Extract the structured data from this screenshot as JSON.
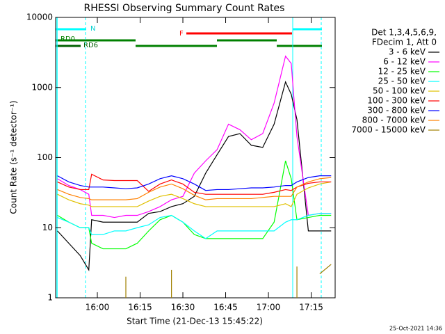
{
  "chart_data": {
    "type": "line",
    "title": "RHESSI Observing Summary Count Rates",
    "xlabel": "Start Time (21-Dec-13 15:45:22)",
    "ylabel": "Count Rate (s⁻¹ detector⁻¹)",
    "legend_header": [
      "Det 1,3,4,5,6,9,",
      "FDecim 1, Att 0"
    ],
    "timestamp": "25-Oct-2021 14:36",
    "flags": [
      "N",
      "F",
      "RD0",
      "RD6"
    ],
    "ylog": true,
    "ylim": [
      1,
      10000
    ],
    "yticks": [
      1,
      10,
      100,
      1000,
      10000
    ],
    "xlim": [
      945.37,
      1043.4
    ],
    "xticks": [
      {
        "value": 960,
        "label": "16:00"
      },
      {
        "value": 975,
        "label": "16:15"
      },
      {
        "value": 990,
        "label": "16:30"
      },
      {
        "value": 1005,
        "label": "16:45"
      },
      {
        "value": 1020,
        "label": "17:00"
      },
      {
        "value": 1035,
        "label": "17:15"
      }
    ],
    "x": [
      946,
      950,
      954,
      957,
      958,
      962,
      966,
      970,
      974,
      978,
      982,
      986,
      990,
      994,
      998,
      1002,
      1006,
      1010,
      1014,
      1018,
      1022,
      1026,
      1028,
      1030,
      1034,
      1038,
      1042
    ],
    "series": [
      {
        "name": "3 - 6 keV",
        "color": "#000000",
        "values": [
          9,
          6,
          4,
          2.5,
          13,
          12,
          12,
          12,
          12,
          16,
          17,
          20,
          22,
          28,
          60,
          110,
          200,
          220,
          150,
          140,
          300,
          1200,
          800,
          350,
          9,
          9,
          9
        ]
      },
      {
        "name": "6 - 12 keV",
        "color": "#ff00ff",
        "values": [
          50,
          40,
          35,
          30,
          15,
          15,
          14,
          15,
          15,
          17,
          20,
          25,
          28,
          60,
          90,
          130,
          300,
          250,
          180,
          220,
          600,
          2800,
          2200,
          200,
          15,
          16,
          16
        ]
      },
      {
        "name": "12 - 25 keV",
        "color": "#00ff00",
        "values": [
          15,
          12,
          10,
          10,
          6,
          5,
          5,
          5,
          6,
          9,
          13,
          15,
          12,
          8,
          7,
          7,
          7,
          7,
          7,
          7,
          12,
          90,
          50,
          13,
          14,
          15,
          15
        ]
      },
      {
        "name": "25 - 50 keV",
        "color": "#00ffff",
        "values": [
          14,
          12,
          10,
          10,
          8,
          8,
          9,
          9,
          10,
          11,
          14,
          15,
          12,
          9,
          7,
          9,
          9,
          9,
          9,
          9,
          9,
          12,
          13,
          13,
          15,
          16,
          16
        ]
      },
      {
        "name": "50 - 100 keV",
        "color": "#e0c000",
        "values": [
          30,
          25,
          22,
          21,
          20,
          20,
          20,
          20,
          20,
          24,
          28,
          30,
          26,
          22,
          20,
          20,
          20,
          20,
          20,
          20,
          20,
          22,
          20,
          30,
          37,
          42,
          45
        ]
      },
      {
        "name": "100 - 300 keV",
        "color": "#ff0000",
        "values": [
          45,
          38,
          35,
          35,
          58,
          48,
          47,
          47,
          47,
          33,
          42,
          48,
          42,
          32,
          30,
          30,
          30,
          30,
          30,
          30,
          32,
          35,
          34,
          38,
          43,
          45,
          45
        ]
      },
      {
        "name": "300 - 800 keV",
        "color": "#0000ff",
        "values": [
          55,
          45,
          40,
          38,
          38,
          38,
          37,
          36,
          37,
          42,
          50,
          55,
          50,
          42,
          34,
          35,
          35,
          36,
          37,
          37,
          38,
          40,
          40,
          45,
          52,
          55,
          55
        ]
      },
      {
        "name": "800 - 7000 keV",
        "color": "#ff8000",
        "values": [
          35,
          30,
          27,
          26,
          25,
          25,
          25,
          25,
          26,
          32,
          38,
          42,
          36,
          29,
          25,
          26,
          26,
          26,
          26,
          27,
          28,
          28,
          28,
          38,
          45,
          50,
          52
        ]
      },
      {
        "name": "7000 - 15000 keV",
        "color": "#a08000",
        "values": [
          null,
          null,
          null,
          null,
          null,
          null,
          null,
          2,
          null,
          null,
          null,
          2.5,
          null,
          null,
          null,
          null,
          null,
          null,
          null,
          null,
          null,
          null,
          null,
          2.8,
          null,
          2.2,
          3
        ]
      }
    ]
  }
}
